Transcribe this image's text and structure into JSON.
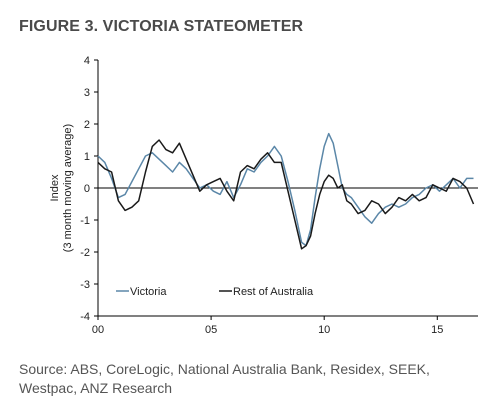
{
  "title": "FIGURE 3. VICTORIA STATEOMETER",
  "source": "Source: ABS, CoreLogic, National Australia Bank, Residex, SEEK, Westpac, ANZ Research",
  "chart_data": {
    "type": "line",
    "title": "FIGURE 3. VICTORIA STATEOMETER",
    "ylabel_lines": [
      "Index",
      "(3 month moving average)"
    ],
    "xlabel": "",
    "ylim": [
      -4,
      4
    ],
    "xlim": [
      2000,
      2016.8
    ],
    "yticks": [
      -4,
      -3,
      -2,
      -1,
      0,
      1,
      2,
      3,
      4
    ],
    "xticks": [
      2000,
      2005,
      2010,
      2015
    ],
    "xtick_labels": [
      "00",
      "05",
      "10",
      "15"
    ],
    "grid": false,
    "legend_position": "bottom-left",
    "series": [
      {
        "name": "Victoria",
        "color": "#5b87a8",
        "x": [
          2000.0,
          2000.3,
          2000.6,
          2000.9,
          2001.2,
          2001.5,
          2001.8,
          2002.1,
          2002.4,
          2002.7,
          2003.0,
          2003.3,
          2003.6,
          2003.9,
          2004.2,
          2004.5,
          2004.8,
          2005.1,
          2005.4,
          2005.7,
          2006.0,
          2006.3,
          2006.6,
          2006.9,
          2007.2,
          2007.5,
          2007.8,
          2008.1,
          2008.4,
          2008.7,
          2009.0,
          2009.2,
          2009.4,
          2009.6,
          2009.8,
          2010.0,
          2010.2,
          2010.4,
          2010.6,
          2010.8,
          2011.0,
          2011.2,
          2011.5,
          2011.8,
          2012.1,
          2012.4,
          2012.7,
          2013.0,
          2013.3,
          2013.6,
          2013.9,
          2014.2,
          2014.5,
          2014.8,
          2015.1,
          2015.4,
          2015.7,
          2016.0,
          2016.3,
          2016.6
        ],
        "y": [
          1.0,
          0.8,
          0.3,
          -0.3,
          -0.2,
          0.2,
          0.6,
          1.0,
          1.1,
          0.9,
          0.7,
          0.5,
          0.8,
          0.6,
          0.3,
          0.0,
          0.1,
          -0.1,
          -0.2,
          0.2,
          -0.3,
          0.1,
          0.6,
          0.5,
          0.8,
          1.0,
          1.3,
          1.0,
          0.2,
          -0.7,
          -1.7,
          -1.8,
          -1.3,
          -0.3,
          0.6,
          1.3,
          1.7,
          1.4,
          0.7,
          0.0,
          -0.2,
          -0.3,
          -0.6,
          -0.9,
          -1.1,
          -0.8,
          -0.6,
          -0.5,
          -0.6,
          -0.5,
          -0.3,
          -0.2,
          0.0,
          0.1,
          -0.1,
          0.1,
          0.3,
          0.0,
          0.3,
          0.3
        ]
      },
      {
        "name": "Rest of Australia",
        "color": "#1a1a1a",
        "x": [
          2000.0,
          2000.3,
          2000.6,
          2000.9,
          2001.2,
          2001.5,
          2001.8,
          2002.1,
          2002.4,
          2002.7,
          2003.0,
          2003.3,
          2003.6,
          2003.9,
          2004.2,
          2004.5,
          2004.8,
          2005.1,
          2005.4,
          2005.7,
          2006.0,
          2006.3,
          2006.6,
          2006.9,
          2007.2,
          2007.5,
          2007.8,
          2008.1,
          2008.4,
          2008.7,
          2009.0,
          2009.2,
          2009.4,
          2009.6,
          2009.8,
          2010.0,
          2010.2,
          2010.4,
          2010.6,
          2010.8,
          2011.0,
          2011.2,
          2011.5,
          2011.8,
          2012.1,
          2012.4,
          2012.7,
          2013.0,
          2013.3,
          2013.6,
          2013.9,
          2014.2,
          2014.5,
          2014.8,
          2015.1,
          2015.4,
          2015.7,
          2016.0,
          2016.3,
          2016.6
        ],
        "y": [
          0.8,
          0.6,
          0.5,
          -0.4,
          -0.7,
          -0.6,
          -0.4,
          0.5,
          1.3,
          1.5,
          1.2,
          1.1,
          1.4,
          0.9,
          0.4,
          -0.1,
          0.1,
          0.2,
          0.3,
          -0.1,
          -0.4,
          0.5,
          0.7,
          0.6,
          0.9,
          1.1,
          0.8,
          0.8,
          -0.1,
          -1.0,
          -1.9,
          -1.8,
          -1.5,
          -0.8,
          -0.2,
          0.2,
          0.4,
          0.3,
          0.0,
          0.1,
          -0.4,
          -0.5,
          -0.8,
          -0.7,
          -0.4,
          -0.5,
          -0.8,
          -0.6,
          -0.3,
          -0.4,
          -0.2,
          -0.4,
          -0.3,
          0.1,
          0.0,
          -0.1,
          0.3,
          0.2,
          0.0,
          -0.5
        ]
      }
    ]
  }
}
